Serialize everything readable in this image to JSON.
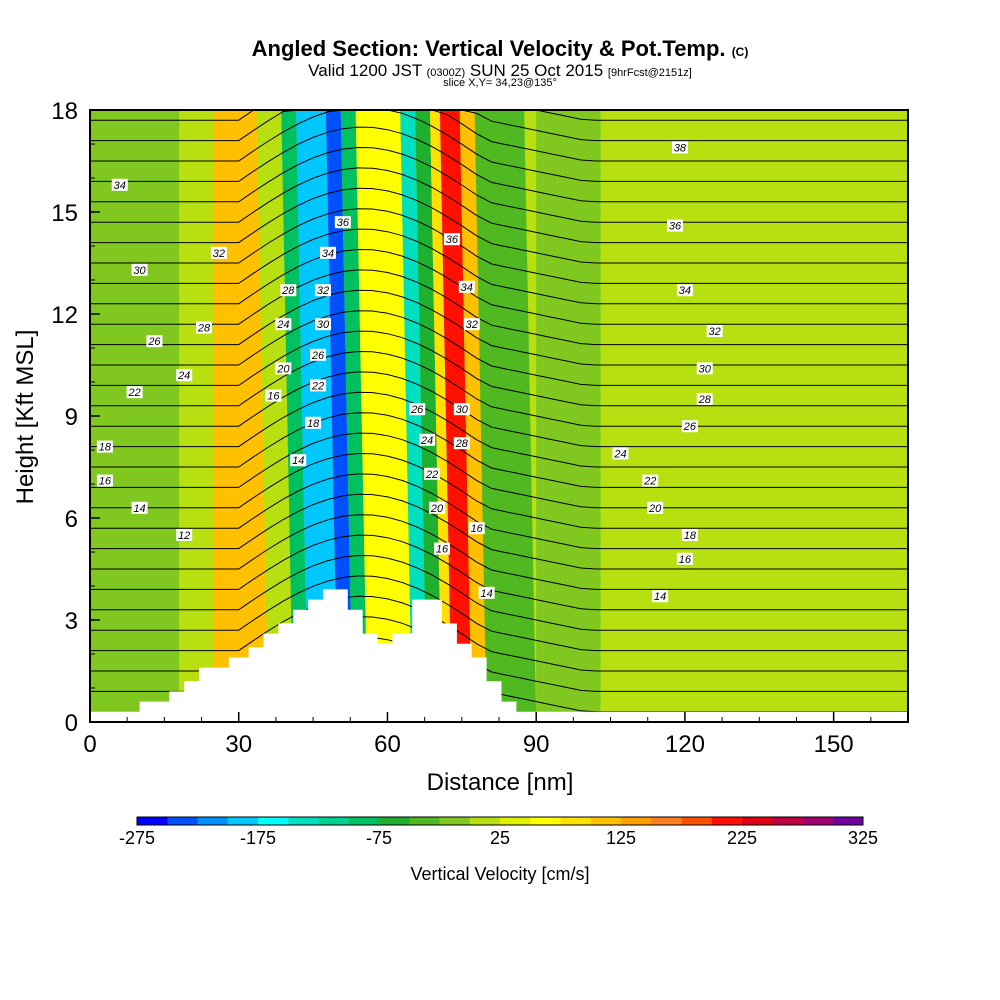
{
  "title": {
    "main": "Angled Section: Vertical Velocity & Pot.Temp.",
    "copyright": "(C)",
    "valid_prefix": "Valid 1200 JST",
    "valid_utc": "(0300Z)",
    "valid_date": "SUN 25 Oct 2015",
    "forecast": "[9hrFcst@2151z]",
    "slice": "slice X,Y= 34,23@135°"
  },
  "chart_data": {
    "type": "heatmap",
    "xlabel": "Distance [nm]",
    "ylabel": "Height [Kft MSL]",
    "xlim": [
      0,
      165
    ],
    "ylim": [
      0,
      18
    ],
    "x_ticks": [
      "0",
      "30",
      "60",
      "90",
      "120",
      "150"
    ],
    "y_ticks": [
      "0",
      "3",
      "6",
      "9",
      "12",
      "15",
      "18"
    ],
    "x_tick_values": [
      0,
      30,
      60,
      90,
      120,
      150
    ],
    "y_tick_values": [
      0,
      3,
      6,
      9,
      12,
      15,
      18
    ],
    "shaded_field": "Vertical Velocity [cm/s]",
    "contour_field": "Potential temperature (labels)",
    "velocity_bands": [
      {
        "x_start": 0,
        "x_end": 18,
        "w": -10
      },
      {
        "x_start": 18,
        "x_end": 25,
        "w": 20
      },
      {
        "x_start": 25,
        "x_end": 36,
        "w": 100
      },
      {
        "x_start": 36,
        "x_end": 41,
        "w": 20
      },
      {
        "x_start": 41,
        "x_end": 44,
        "w": -80
      },
      {
        "x_start": 44,
        "x_end": 50,
        "w": -180
      },
      {
        "x_start": 50,
        "x_end": 53,
        "w": -230
      },
      {
        "x_start": 53,
        "x_end": 56,
        "w": -80
      },
      {
        "x_start": 56,
        "x_end": 65,
        "w": 60
      },
      {
        "x_start": 65,
        "x_end": 68,
        "w": -150
      },
      {
        "x_start": 68,
        "x_end": 71,
        "w": -60
      },
      {
        "x_start": 71,
        "x_end": 73,
        "w": 80
      },
      {
        "x_start": 73,
        "x_end": 77,
        "w": 220
      },
      {
        "x_start": 77,
        "x_end": 80,
        "w": 120
      },
      {
        "x_start": 80,
        "x_end": 90,
        "w": -30
      },
      {
        "x_start": 90,
        "x_end": 103,
        "w": -10
      },
      {
        "x_start": 103,
        "x_end": 117,
        "w": 20
      },
      {
        "x_start": 117,
        "x_end": 135,
        "w": 10
      },
      {
        "x_start": 135,
        "x_end": 150,
        "w": 15
      },
      {
        "x_start": 150,
        "x_end": 165,
        "w": 0
      }
    ],
    "terrain_profile": [
      {
        "x": 0,
        "h": 0.3
      },
      {
        "x": 10,
        "h": 0.3
      },
      {
        "x": 10,
        "h": 0.6
      },
      {
        "x": 16,
        "h": 0.6
      },
      {
        "x": 16,
        "h": 0.9
      },
      {
        "x": 19,
        "h": 0.9
      },
      {
        "x": 19,
        "h": 1.2
      },
      {
        "x": 22,
        "h": 1.2
      },
      {
        "x": 22,
        "h": 1.6
      },
      {
        "x": 28,
        "h": 1.6
      },
      {
        "x": 28,
        "h": 1.9
      },
      {
        "x": 32,
        "h": 1.9
      },
      {
        "x": 32,
        "h": 2.2
      },
      {
        "x": 35,
        "h": 2.2
      },
      {
        "x": 35,
        "h": 2.6
      },
      {
        "x": 38,
        "h": 2.6
      },
      {
        "x": 38,
        "h": 2.9
      },
      {
        "x": 41,
        "h": 2.9
      },
      {
        "x": 41,
        "h": 3.3
      },
      {
        "x": 44,
        "h": 3.3
      },
      {
        "x": 44,
        "h": 3.6
      },
      {
        "x": 47,
        "h": 3.6
      },
      {
        "x": 47,
        "h": 3.9
      },
      {
        "x": 52,
        "h": 3.9
      },
      {
        "x": 52,
        "h": 3.3
      },
      {
        "x": 55,
        "h": 3.3
      },
      {
        "x": 55,
        "h": 2.6
      },
      {
        "x": 58,
        "h": 2.6
      },
      {
        "x": 58,
        "h": 2.3
      },
      {
        "x": 61,
        "h": 2.3
      },
      {
        "x": 61,
        "h": 2.6
      },
      {
        "x": 65,
        "h": 2.6
      },
      {
        "x": 65,
        "h": 3.6
      },
      {
        "x": 71,
        "h": 3.6
      },
      {
        "x": 71,
        "h": 2.9
      },
      {
        "x": 74,
        "h": 2.9
      },
      {
        "x": 74,
        "h": 2.3
      },
      {
        "x": 77,
        "h": 2.3
      },
      {
        "x": 77,
        "h": 1.9
      },
      {
        "x": 80,
        "h": 1.9
      },
      {
        "x": 80,
        "h": 1.2
      },
      {
        "x": 83,
        "h": 1.2
      },
      {
        "x": 83,
        "h": 0.6
      },
      {
        "x": 86,
        "h": 0.6
      },
      {
        "x": 86,
        "h": 0.3
      },
      {
        "x": 165,
        "h": 0.3
      }
    ],
    "contour_labels": [
      {
        "text": "34",
        "x": 6,
        "y": 15.8
      },
      {
        "text": "32",
        "x": 26,
        "y": 13.8
      },
      {
        "text": "30",
        "x": 10,
        "y": 13.3
      },
      {
        "text": "28",
        "x": 23,
        "y": 11.6
      },
      {
        "text": "26",
        "x": 13,
        "y": 11.2
      },
      {
        "text": "24",
        "x": 19,
        "y": 10.2
      },
      {
        "text": "22",
        "x": 9,
        "y": 9.7
      },
      {
        "text": "18",
        "x": 3,
        "y": 8.1
      },
      {
        "text": "16",
        "x": 3,
        "y": 7.1
      },
      {
        "text": "14",
        "x": 10,
        "y": 6.3
      },
      {
        "text": "12",
        "x": 19,
        "y": 5.5
      },
      {
        "text": "36",
        "x": 51,
        "y": 14.7
      },
      {
        "text": "34",
        "x": 48,
        "y": 13.8
      },
      {
        "text": "32",
        "x": 47,
        "y": 12.7
      },
      {
        "text": "30",
        "x": 47,
        "y": 11.7
      },
      {
        "text": "28",
        "x": 40,
        "y": 12.7
      },
      {
        "text": "24",
        "x": 39,
        "y": 11.7
      },
      {
        "text": "26",
        "x": 46,
        "y": 10.8
      },
      {
        "text": "20",
        "x": 39,
        "y": 10.4
      },
      {
        "text": "22",
        "x": 46,
        "y": 9.9
      },
      {
        "text": "16",
        "x": 37,
        "y": 9.6
      },
      {
        "text": "18",
        "x": 45,
        "y": 8.8
      },
      {
        "text": "14",
        "x": 42,
        "y": 7.7
      },
      {
        "text": "36",
        "x": 73,
        "y": 14.2
      },
      {
        "text": "34",
        "x": 76,
        "y": 12.8
      },
      {
        "text": "32",
        "x": 77,
        "y": 11.7
      },
      {
        "text": "30",
        "x": 75,
        "y": 9.2
      },
      {
        "text": "28",
        "x": 75,
        "y": 8.2
      },
      {
        "text": "26",
        "x": 66,
        "y": 9.2
      },
      {
        "text": "24",
        "x": 68,
        "y": 8.3
      },
      {
        "text": "22",
        "x": 69,
        "y": 7.3
      },
      {
        "text": "20",
        "x": 70,
        "y": 6.3
      },
      {
        "text": "16",
        "x": 71,
        "y": 5.1
      },
      {
        "text": "16",
        "x": 78,
        "y": 5.7
      },
      {
        "text": "14",
        "x": 80,
        "y": 3.8
      },
      {
        "text": "38",
        "x": 119,
        "y": 16.9
      },
      {
        "text": "36",
        "x": 118,
        "y": 14.6
      },
      {
        "text": "34",
        "x": 120,
        "y": 12.7
      },
      {
        "text": "32",
        "x": 126,
        "y": 11.5
      },
      {
        "text": "30",
        "x": 124,
        "y": 10.4
      },
      {
        "text": "28",
        "x": 124,
        "y": 9.5
      },
      {
        "text": "26",
        "x": 121,
        "y": 8.7
      },
      {
        "text": "24",
        "x": 107,
        "y": 7.9
      },
      {
        "text": "22",
        "x": 113,
        "y": 7.1
      },
      {
        "text": "20",
        "x": 114,
        "y": 6.3
      },
      {
        "text": "18",
        "x": 121,
        "y": 5.5
      },
      {
        "text": "16",
        "x": 120,
        "y": 4.8
      },
      {
        "text": "14",
        "x": 115,
        "y": 3.7
      }
    ]
  },
  "colorbar": {
    "label": "Vertical Velocity [cm/s]",
    "tick_labels": [
      "-275",
      "-175",
      "-75",
      "25",
      "125",
      "225",
      "325"
    ],
    "tick_values": [
      -275,
      -175,
      -75,
      25,
      125,
      225,
      325
    ],
    "colors": [
      "#0000ff",
      "#0050ff",
      "#0090ff",
      "#00c8ff",
      "#00ffff",
      "#00e0c0",
      "#00d090",
      "#00c060",
      "#20b030",
      "#50b820",
      "#80c820",
      "#b8e010",
      "#e0f000",
      "#ffff00",
      "#ffe000",
      "#ffc000",
      "#ffa000",
      "#ff8020",
      "#ff5000",
      "#ff1000",
      "#e00010",
      "#c00040",
      "#a00070",
      "#7000a0"
    ]
  }
}
